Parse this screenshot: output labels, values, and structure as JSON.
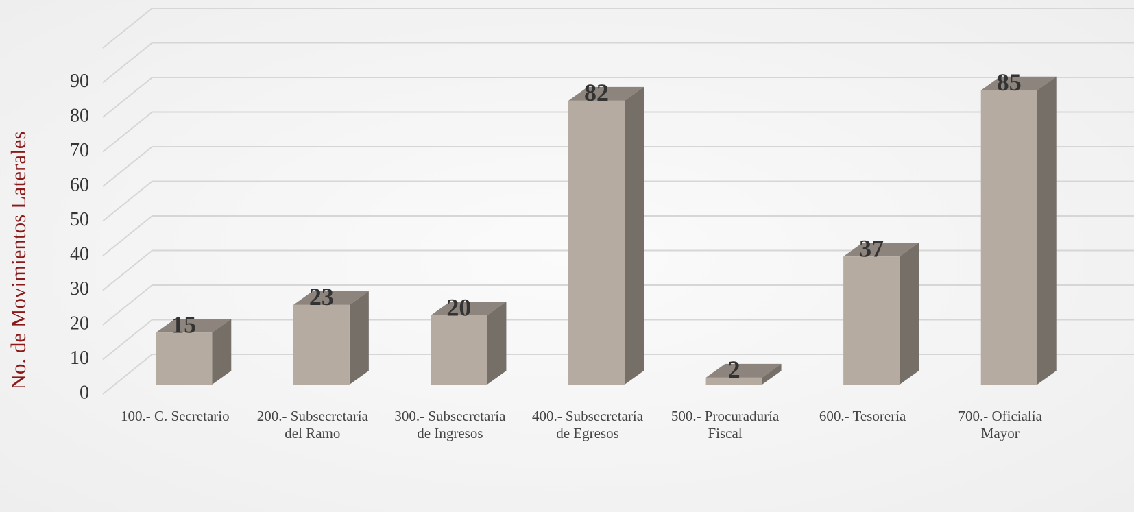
{
  "chart_data": {
    "type": "bar3d",
    "y_axis_label": "No. de Movimientos Laterales",
    "categories": [
      "100.- C. Secretario",
      "200.- Subsecretaría del Ramo",
      "300.- Subsecretaría de Ingresos",
      "400.- Subsecretaría de Egresos",
      "500.- Procuraduría Fiscal",
      "600.- Tesorería",
      "700.- Oficialía Mayor"
    ],
    "values": [
      15,
      23,
      20,
      82,
      2,
      37,
      85
    ],
    "color": "#b5aba0",
    "ylim": [
      0,
      100
    ],
    "yticks": [
      0,
      10,
      20,
      30,
      40,
      50,
      60,
      70,
      80,
      90
    ],
    "grid": true
  }
}
